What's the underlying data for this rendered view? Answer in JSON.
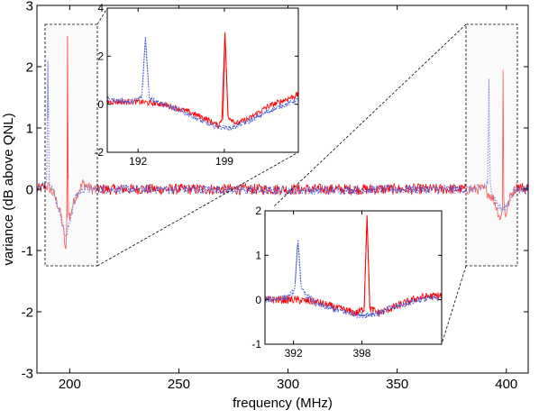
{
  "chart_data": [
    {
      "type": "line",
      "panel": "main",
      "xlabel": "frequency (MHz)",
      "ylabel": "variance (dB above QNL)",
      "xlim": [
        185,
        410
      ],
      "ylim": [
        -3,
        3
      ],
      "xticks": [
        200,
        250,
        300,
        350,
        400
      ],
      "yticks": [
        -3,
        -2,
        -1,
        0,
        1,
        2,
        3
      ],
      "grid": false,
      "legend": "none",
      "series": [
        {
          "style": "solid",
          "color": "#ff0000",
          "points": [
            [
              185,
              0.0
            ],
            [
              190,
              0.05
            ],
            [
              193,
              -0.1
            ],
            [
              195,
              -0.3
            ],
            [
              196.5,
              -0.5
            ],
            [
              197.5,
              -0.8
            ],
            [
              198.3,
              -1.05
            ],
            [
              198.8,
              -0.4
            ],
            [
              199.0,
              2.5
            ],
            [
              199.3,
              -0.3
            ],
            [
              200,
              -0.5
            ],
            [
              201,
              -0.3
            ],
            [
              203,
              -0.1
            ],
            [
              206,
              0.1
            ],
            [
              210,
              0.0
            ],
            [
              250,
              0.0
            ],
            [
              300,
              0.0
            ],
            [
              350,
              0.0
            ],
            [
              390,
              0.0
            ],
            [
              394,
              -0.15
            ],
            [
              396,
              -0.35
            ],
            [
              397.5,
              -0.5
            ],
            [
              398.2,
              -0.3
            ],
            [
              398.5,
              2.0
            ],
            [
              398.8,
              -0.2
            ],
            [
              399.5,
              -0.45
            ],
            [
              400.5,
              -0.3
            ],
            [
              402,
              -0.1
            ],
            [
              405,
              0.05
            ],
            [
              410,
              0.0
            ]
          ],
          "noise": 0.09
        },
        {
          "style": "dotted",
          "color": "#4a5bd6",
          "points": [
            [
              185,
              0.0
            ],
            [
              188,
              0.05
            ],
            [
              189.5,
              0.2
            ],
            [
              190,
              2.1
            ],
            [
              190.5,
              0.2
            ],
            [
              192,
              0.0
            ],
            [
              194,
              -0.2
            ],
            [
              196,
              -0.45
            ],
            [
              197.5,
              -0.7
            ],
            [
              198.5,
              -0.8
            ],
            [
              199.5,
              -0.6
            ],
            [
              201,
              -0.35
            ],
            [
              203,
              -0.1
            ],
            [
              206,
              0.0
            ],
            [
              250,
              0.0
            ],
            [
              300,
              -0.02
            ],
            [
              350,
              0.0
            ],
            [
              388,
              0.0
            ],
            [
              391.5,
              0.1
            ],
            [
              392,
              1.8
            ],
            [
              392.5,
              0.1
            ],
            [
              394,
              -0.1
            ],
            [
              396,
              -0.25
            ],
            [
              398,
              -0.35
            ],
            [
              399.5,
              -0.3
            ],
            [
              401,
              -0.2
            ],
            [
              404,
              0.0
            ],
            [
              410,
              0.0
            ]
          ],
          "noise": 0.07
        }
      ]
    },
    {
      "type": "line",
      "panel": "inset-top-left",
      "xlim": [
        189.5,
        205
      ],
      "ylim": [
        -2,
        4
      ],
      "xticks": [
        192,
        199
      ],
      "yticks": [
        -2,
        0,
        2,
        4
      ],
      "series": [
        {
          "style": "solid",
          "color": "#ff0000",
          "points": [
            [
              189.5,
              0.1
            ],
            [
              192,
              0.1
            ],
            [
              194,
              0.0
            ],
            [
              196,
              -0.3
            ],
            [
              197.5,
              -0.6
            ],
            [
              198.5,
              -0.9
            ],
            [
              198.9,
              -0.5
            ],
            [
              199.05,
              3.0
            ],
            [
              199.3,
              -0.5
            ],
            [
              200,
              -0.8
            ],
            [
              201,
              -0.6
            ],
            [
              202.5,
              -0.1
            ],
            [
              204,
              0.2
            ],
            [
              205,
              0.4
            ]
          ],
          "noise": 0.12
        },
        {
          "style": "dotted",
          "color": "#4a5bd6",
          "points": [
            [
              189.5,
              0.2
            ],
            [
              191.5,
              0.1
            ],
            [
              192.3,
              0.3
            ],
            [
              192.6,
              2.8
            ],
            [
              192.9,
              0.3
            ],
            [
              194,
              0.0
            ],
            [
              196,
              -0.4
            ],
            [
              198,
              -0.9
            ],
            [
              199.5,
              -1.0
            ],
            [
              201,
              -0.7
            ],
            [
              203,
              -0.2
            ],
            [
              205,
              0.2
            ]
          ],
          "noise": 0.1
        }
      ]
    },
    {
      "type": "line",
      "panel": "inset-bottom-right",
      "xlim": [
        389.5,
        405
      ],
      "ylim": [
        -1,
        2
      ],
      "xticks": [
        392,
        398
      ],
      "yticks": [
        -1,
        0,
        1,
        2
      ],
      "series": [
        {
          "style": "solid",
          "color": "#ff0000",
          "points": [
            [
              389.5,
              0.0
            ],
            [
              392,
              0.0
            ],
            [
              394,
              -0.05
            ],
            [
              396,
              -0.2
            ],
            [
              397.5,
              -0.3
            ],
            [
              398.2,
              -0.2
            ],
            [
              398.45,
              1.9
            ],
            [
              398.7,
              -0.2
            ],
            [
              399.5,
              -0.3
            ],
            [
              401,
              -0.15
            ],
            [
              403,
              0.05
            ],
            [
              405,
              0.1
            ]
          ],
          "noise": 0.09
        },
        {
          "style": "dotted",
          "color": "#4a5bd6",
          "points": [
            [
              389.5,
              0.0
            ],
            [
              391.5,
              0.05
            ],
            [
              392.1,
              0.2
            ],
            [
              392.4,
              1.35
            ],
            [
              392.7,
              0.2
            ],
            [
              394,
              -0.1
            ],
            [
              396,
              -0.25
            ],
            [
              398,
              -0.35
            ],
            [
              399.5,
              -0.3
            ],
            [
              401,
              -0.15
            ],
            [
              403,
              0.0
            ],
            [
              405,
              0.05
            ]
          ],
          "noise": 0.07
        }
      ]
    }
  ]
}
